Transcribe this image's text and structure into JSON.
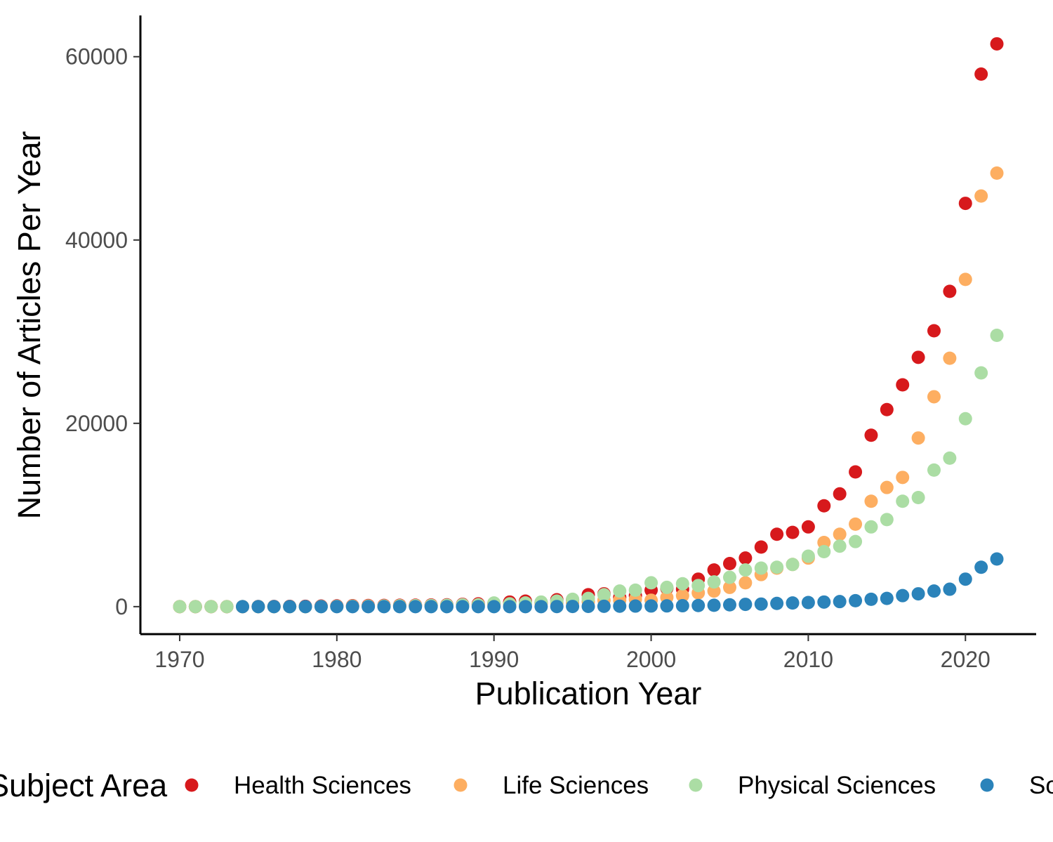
{
  "chart_data": {
    "type": "scatter",
    "title": "",
    "xlabel": "Publication Year",
    "ylabel": "Number of Articles Per Year",
    "xlim": [
      1967.5,
      2024.5
    ],
    "ylim": [
      -3000,
      64500
    ],
    "x_ticks": [
      1970,
      1980,
      1990,
      2000,
      2010,
      2020
    ],
    "y_ticks": [
      0,
      20000,
      40000,
      60000
    ],
    "x_tick_labels": [
      "1970",
      "1980",
      "1990",
      "2000",
      "2010",
      "2020"
    ],
    "y_tick_labels": [
      "0",
      "20000",
      "40000",
      "60000"
    ],
    "grid": false,
    "legend": {
      "title": "Subject Area",
      "position": "bottom",
      "entries": [
        "Health Sciences",
        "Life Sciences",
        "Physical Sciences",
        "Social Sciences"
      ]
    },
    "series": [
      {
        "name": "Health Sciences",
        "color": "#d7191c",
        "x": [
          1970,
          1971,
          1972,
          1973,
          1974,
          1975,
          1976,
          1977,
          1978,
          1979,
          1980,
          1981,
          1982,
          1983,
          1984,
          1985,
          1986,
          1987,
          1988,
          1989,
          1990,
          1991,
          1992,
          1993,
          1994,
          1995,
          1996,
          1997,
          1998,
          1999,
          2000,
          2001,
          2002,
          2003,
          2004,
          2005,
          2006,
          2007,
          2008,
          2009,
          2010,
          2011,
          2012,
          2013,
          2014,
          2015,
          2016,
          2017,
          2018,
          2019,
          2020,
          2021,
          2022
        ],
        "y": [
          0,
          0,
          0,
          0,
          0,
          10,
          20,
          30,
          40,
          60,
          80,
          100,
          120,
          130,
          150,
          160,
          180,
          200,
          250,
          300,
          350,
          500,
          600,
          450,
          750,
          750,
          1300,
          1400,
          1000,
          1200,
          1800,
          2000,
          1900,
          3000,
          4000,
          4700,
          5300,
          6500,
          7900,
          8100,
          8700,
          11000,
          12300,
          14700,
          18700,
          21500,
          24200,
          27200,
          30100,
          34400,
          44000,
          58100,
          61400
        ]
      },
      {
        "name": "Life Sciences",
        "color": "#fdae61",
        "x": [
          1970,
          1971,
          1972,
          1973,
          1974,
          1975,
          1976,
          1977,
          1978,
          1979,
          1980,
          1981,
          1982,
          1983,
          1984,
          1985,
          1986,
          1987,
          1988,
          1989,
          1990,
          1991,
          1992,
          1993,
          1994,
          1995,
          1996,
          1997,
          1998,
          1999,
          2000,
          2001,
          2002,
          2003,
          2004,
          2005,
          2006,
          2007,
          2008,
          2009,
          2010,
          2011,
          2012,
          2013,
          2014,
          2015,
          2016,
          2017,
          2018,
          2019,
          2020,
          2021,
          2022
        ],
        "y": [
          0,
          0,
          0,
          0,
          0,
          0,
          0,
          0,
          0,
          20,
          40,
          60,
          70,
          80,
          100,
          110,
          120,
          130,
          140,
          200,
          200,
          250,
          300,
          350,
          400,
          450,
          550,
          700,
          700,
          800,
          700,
          1000,
          1200,
          1500,
          1700,
          2100,
          2600,
          3500,
          4200,
          4600,
          5300,
          7000,
          7900,
          9000,
          11500,
          13000,
          14100,
          18400,
          22900,
          27100,
          35700,
          44800,
          47300
        ]
      },
      {
        "name": "Physical Sciences",
        "color": "#abdda4",
        "x": [
          1970,
          1971,
          1972,
          1973,
          1974,
          1975,
          1976,
          1977,
          1978,
          1979,
          1980,
          1981,
          1982,
          1983,
          1984,
          1985,
          1986,
          1987,
          1988,
          1989,
          1990,
          1991,
          1992,
          1993,
          1994,
          1995,
          1996,
          1997,
          1998,
          1999,
          2000,
          2001,
          2002,
          2003,
          2004,
          2005,
          2006,
          2007,
          2008,
          2009,
          2010,
          2011,
          2012,
          2013,
          2014,
          2015,
          2016,
          2017,
          2018,
          2019,
          2020,
          2021,
          2022
        ],
        "y": [
          0,
          0,
          0,
          0,
          0,
          0,
          0,
          0,
          0,
          10,
          20,
          30,
          40,
          60,
          80,
          100,
          120,
          150,
          200,
          200,
          400,
          300,
          400,
          500,
          600,
          800,
          900,
          1300,
          1700,
          1800,
          2600,
          2100,
          2500,
          2300,
          2700,
          3200,
          4000,
          4200,
          4300,
          4600,
          5500,
          6000,
          6600,
          7100,
          8700,
          9500,
          11500,
          11900,
          14900,
          16200,
          20500,
          25500,
          29600
        ]
      },
      {
        "name": "Social Sciences",
        "color": "#2b83ba",
        "x": [
          1974,
          1975,
          1976,
          1977,
          1978,
          1979,
          1980,
          1981,
          1982,
          1983,
          1984,
          1985,
          1986,
          1987,
          1988,
          1989,
          1990,
          1991,
          1992,
          1993,
          1994,
          1995,
          1996,
          1997,
          1998,
          1999,
          2000,
          2001,
          2002,
          2003,
          2004,
          2005,
          2006,
          2007,
          2008,
          2009,
          2010,
          2011,
          2012,
          2013,
          2014,
          2015,
          2016,
          2017,
          2018,
          2019,
          2020,
          2021,
          2022
        ],
        "y": [
          0,
          0,
          0,
          0,
          0,
          0,
          0,
          0,
          0,
          0,
          0,
          0,
          0,
          0,
          0,
          0,
          0,
          0,
          0,
          0,
          10,
          20,
          30,
          40,
          50,
          60,
          70,
          80,
          100,
          120,
          150,
          200,
          250,
          280,
          350,
          400,
          450,
          500,
          550,
          650,
          800,
          900,
          1200,
          1400,
          1700,
          1900,
          3000,
          4300,
          5200
        ]
      }
    ]
  }
}
